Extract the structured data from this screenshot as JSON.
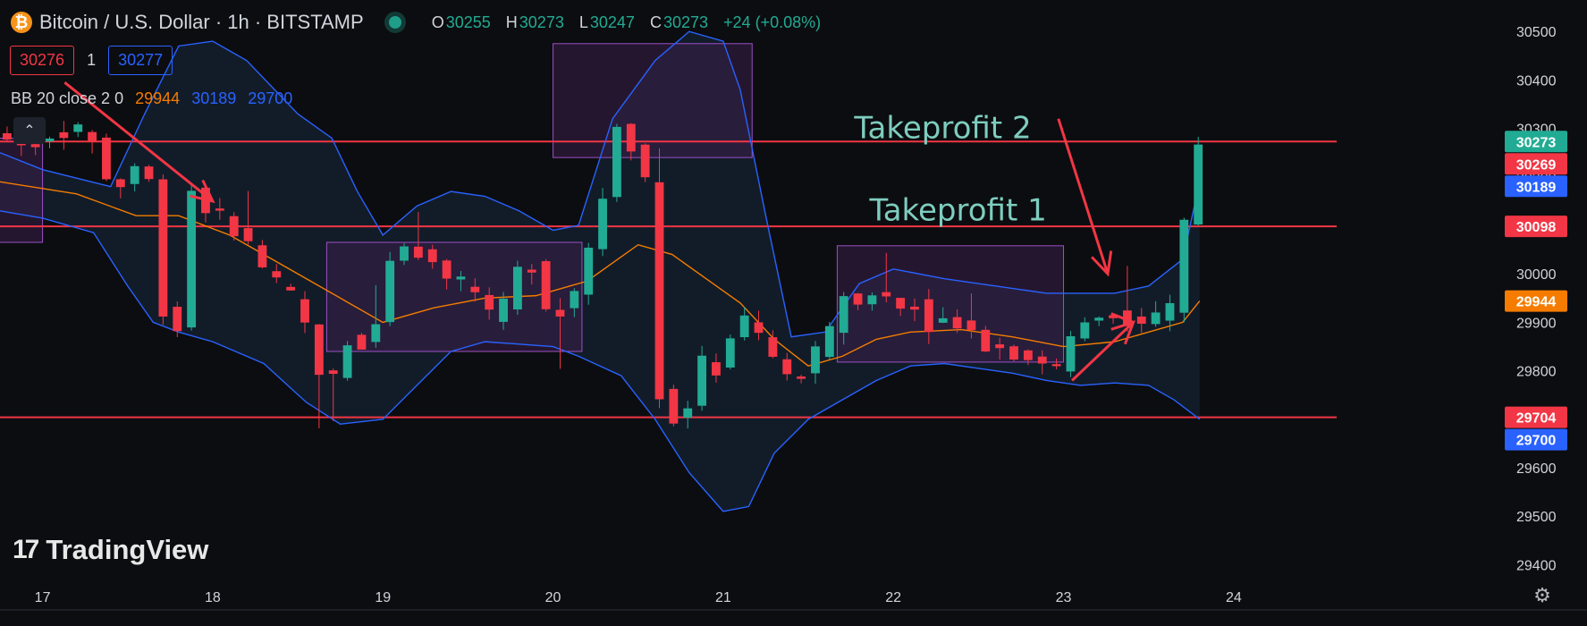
{
  "header": {
    "title": "Bitcoin / U.S. Dollar · 1h · BITSTAMP",
    "coin_glyph": "₿",
    "open_key": "O",
    "open": "30255",
    "high_key": "H",
    "high": "30273",
    "low_key": "L",
    "low": "30247",
    "close_key": "C",
    "close": "30273",
    "change": "+24 (+0.08%)"
  },
  "quote": {
    "sell": "30276",
    "spread": "1",
    "buy": "30277"
  },
  "indicator": {
    "label": "BB 20 close 2 0",
    "basis": "29944",
    "upper": "30189",
    "lower": "29700",
    "collapse_glyph": "⌃"
  },
  "logo": {
    "mark": "17",
    "text": "TradingView"
  },
  "settings_glyph": "⚙",
  "colors": {
    "up": "#22ab94",
    "down": "#f23645",
    "upper_band": "#2962ff",
    "lower_band": "#2962ff",
    "basis": "#f57c00",
    "level_line": "#f23645",
    "box_fill": "#3a1f4a",
    "box_stroke": "#9c4fc6",
    "annotation": "#7ecdbf",
    "arrow": "#f23645"
  },
  "chart_data": {
    "type": "candlestick",
    "title": "Bitcoin / U.S. Dollar · 1h · BITSTAMP",
    "ylim": [
      29375,
      30565
    ],
    "y_ticks": [
      "30500",
      "30400",
      "30300",
      "30200",
      "30100",
      "30000",
      "29900",
      "29800",
      "29700",
      "29600",
      "29500",
      "29400"
    ],
    "x_ticks": [
      "17",
      "18",
      "19",
      "20",
      "21",
      "22",
      "23",
      "24"
    ],
    "x_start_day": 16.75,
    "x_end_day": 24.5,
    "levels": [
      {
        "value": 30273,
        "label": "30273",
        "color": "#22ab94"
      },
      {
        "value": 30098,
        "label": "30098",
        "color": "#f23645"
      },
      {
        "value": 29704,
        "label": "29704",
        "color": "#f23645"
      }
    ],
    "price_tags": [
      {
        "value": 30273,
        "label": "30273",
        "color": "#22ab94"
      },
      {
        "value": 30269,
        "label": "30269",
        "color": "#f23645"
      },
      {
        "value": 30189,
        "label": "30189",
        "color": "#2962ff"
      },
      {
        "value": 30098,
        "label": "30098",
        "color": "#f23645"
      },
      {
        "value": 29944,
        "label": "29944",
        "color": "#f57c00"
      },
      {
        "value": 29704,
        "label": "29704",
        "color": "#f23645"
      },
      {
        "value": 29700,
        "label": "29700",
        "color": "#2962ff"
      }
    ],
    "anchors": [
      [
        16.75,
        30290
      ],
      [
        16.95,
        30260
      ],
      [
        17.15,
        30300
      ],
      [
        17.35,
        30280
      ],
      [
        17.45,
        30150
      ],
      [
        17.55,
        30220
      ],
      [
        17.65,
        30230
      ],
      [
        17.72,
        30060
      ],
      [
        17.78,
        29800
      ],
      [
        17.84,
        29900
      ],
      [
        17.9,
        30180
      ],
      [
        18.05,
        30120
      ],
      [
        18.2,
        30090
      ],
      [
        18.35,
        30000
      ],
      [
        18.5,
        29950
      ],
      [
        18.6,
        29880
      ],
      [
        18.68,
        29790
      ],
      [
        18.72,
        29720
      ],
      [
        18.8,
        29880
      ],
      [
        18.9,
        29850
      ],
      [
        19.0,
        29900
      ],
      [
        19.05,
        30020
      ],
      [
        19.2,
        30060
      ],
      [
        19.3,
        30040
      ],
      [
        19.45,
        29980
      ],
      [
        19.6,
        29960
      ],
      [
        19.7,
        29880
      ],
      [
        19.8,
        29980
      ],
      [
        19.9,
        30050
      ],
      [
        20.0,
        29920
      ],
      [
        20.15,
        29940
      ],
      [
        20.25,
        30050
      ],
      [
        20.35,
        30180
      ],
      [
        20.42,
        30310
      ],
      [
        20.48,
        30280
      ],
      [
        20.55,
        30250
      ],
      [
        20.6,
        30150
      ],
      [
        20.62,
        30060
      ],
      [
        20.64,
        29790
      ],
      [
        20.72,
        29700
      ],
      [
        20.82,
        29700
      ],
      [
        20.88,
        29850
      ],
      [
        20.95,
        29780
      ],
      [
        21.05,
        29830
      ],
      [
        21.12,
        29920
      ],
      [
        21.2,
        29890
      ],
      [
        21.3,
        29850
      ],
      [
        21.4,
        29780
      ],
      [
        21.5,
        29800
      ],
      [
        21.65,
        29860
      ],
      [
        21.75,
        29960
      ],
      [
        21.85,
        29930
      ],
      [
        21.95,
        29980
      ],
      [
        22.05,
        29920
      ],
      [
        22.15,
        29950
      ],
      [
        22.25,
        29900
      ],
      [
        22.4,
        29910
      ],
      [
        22.5,
        29880
      ],
      [
        22.6,
        29850
      ],
      [
        22.75,
        29840
      ],
      [
        22.9,
        29820
      ],
      [
        23.0,
        29800
      ],
      [
        23.1,
        29880
      ],
      [
        23.2,
        29910
      ],
      [
        23.35,
        29920
      ],
      [
        23.5,
        29900
      ],
      [
        23.6,
        29910
      ],
      [
        23.7,
        29930
      ],
      [
        23.75,
        30100
      ],
      [
        23.8,
        30273
      ]
    ],
    "upper_band": [
      [
        16.75,
        30250
      ],
      [
        17.0,
        30215
      ],
      [
        17.4,
        30180
      ],
      [
        17.6,
        30330
      ],
      [
        17.8,
        30470
      ],
      [
        18.0,
        30480
      ],
      [
        18.2,
        30440
      ],
      [
        18.5,
        30330
      ],
      [
        18.7,
        30280
      ],
      [
        18.85,
        30170
      ],
      [
        19.0,
        30080
      ],
      [
        19.2,
        30140
      ],
      [
        19.4,
        30170
      ],
      [
        19.6,
        30160
      ],
      [
        19.8,
        30130
      ],
      [
        20.0,
        30090
      ],
      [
        20.15,
        30100
      ],
      [
        20.35,
        30320
      ],
      [
        20.6,
        30440
      ],
      [
        20.8,
        30500
      ],
      [
        21.0,
        30480
      ],
      [
        21.1,
        30380
      ],
      [
        21.25,
        30120
      ],
      [
        21.4,
        29870
      ],
      [
        21.6,
        29880
      ],
      [
        21.8,
        29980
      ],
      [
        22.0,
        30010
      ],
      [
        22.3,
        29990
      ],
      [
        22.6,
        29975
      ],
      [
        22.9,
        29960
      ],
      [
        23.1,
        29960
      ],
      [
        23.3,
        29960
      ],
      [
        23.5,
        29975
      ],
      [
        23.7,
        30030
      ],
      [
        23.8,
        30189
      ]
    ],
    "lower_band": [
      [
        16.75,
        30130
      ],
      [
        17.0,
        30115
      ],
      [
        17.3,
        30085
      ],
      [
        17.5,
        29975
      ],
      [
        17.65,
        29900
      ],
      [
        17.8,
        29880
      ],
      [
        18.0,
        29860
      ],
      [
        18.3,
        29815
      ],
      [
        18.55,
        29735
      ],
      [
        18.75,
        29690
      ],
      [
        19.0,
        29700
      ],
      [
        19.2,
        29770
      ],
      [
        19.4,
        29840
      ],
      [
        19.6,
        29860
      ],
      [
        19.8,
        29855
      ],
      [
        20.0,
        29850
      ],
      [
        20.15,
        29830
      ],
      [
        20.4,
        29790
      ],
      [
        20.6,
        29700
      ],
      [
        20.8,
        29590
      ],
      [
        21.0,
        29510
      ],
      [
        21.15,
        29520
      ],
      [
        21.3,
        29630
      ],
      [
        21.5,
        29700
      ],
      [
        21.7,
        29740
      ],
      [
        21.9,
        29780
      ],
      [
        22.1,
        29810
      ],
      [
        22.3,
        29815
      ],
      [
        22.5,
        29805
      ],
      [
        22.7,
        29795
      ],
      [
        22.9,
        29780
      ],
      [
        23.1,
        29770
      ],
      [
        23.3,
        29775
      ],
      [
        23.5,
        29770
      ],
      [
        23.65,
        29740
      ],
      [
        23.8,
        29700
      ]
    ],
    "basis": [
      [
        16.75,
        30190
      ],
      [
        17.2,
        30165
      ],
      [
        17.55,
        30120
      ],
      [
        17.8,
        30120
      ],
      [
        18.1,
        30080
      ],
      [
        18.4,
        30020
      ],
      [
        18.7,
        29960
      ],
      [
        19.0,
        29900
      ],
      [
        19.3,
        29930
      ],
      [
        19.6,
        29950
      ],
      [
        19.9,
        29955
      ],
      [
        20.2,
        29985
      ],
      [
        20.5,
        30060
      ],
      [
        20.7,
        30040
      ],
      [
        20.9,
        29990
      ],
      [
        21.1,
        29940
      ],
      [
        21.3,
        29865
      ],
      [
        21.5,
        29810
      ],
      [
        21.7,
        29830
      ],
      [
        21.9,
        29865
      ],
      [
        22.1,
        29880
      ],
      [
        22.4,
        29885
      ],
      [
        22.7,
        29870
      ],
      [
        23.0,
        29850
      ],
      [
        23.3,
        29860
      ],
      [
        23.5,
        29880
      ],
      [
        23.7,
        29900
      ],
      [
        23.8,
        29944
      ]
    ],
    "zones": [
      {
        "x0": 16.74,
        "x1": 17.0,
        "top": 30280,
        "bottom": 30065
      },
      {
        "x0": 18.67,
        "x1": 20.17,
        "top": 30065,
        "bottom": 29840
      },
      {
        "x0": 20.0,
        "x1": 21.17,
        "top": 30475,
        "bottom": 30240
      },
      {
        "x0": 21.67,
        "x1": 23.0,
        "top": 30058,
        "bottom": 29818
      }
    ],
    "annotations": [
      {
        "text": "Takeprofit 2",
        "day": 21.77,
        "value": 30280
      },
      {
        "text": "Takeprofit 1",
        "day": 21.86,
        "value": 30110
      }
    ],
    "arrows": [
      {
        "from": [
          17.13,
          30395
        ],
        "to": [
          18.0,
          30150
        ]
      },
      {
        "from": [
          22.97,
          30320
        ],
        "to": [
          23.26,
          30000
        ]
      },
      {
        "from": [
          23.05,
          29780
        ],
        "to": [
          23.41,
          29900
        ]
      },
      {
        "from": [
          23.28,
          29918
        ],
        "to": [
          23.41,
          29900
        ]
      }
    ]
  }
}
